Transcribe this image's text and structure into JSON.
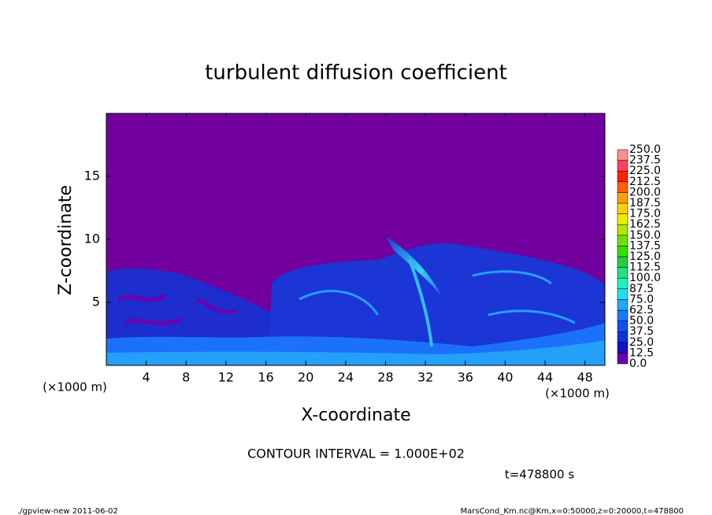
{
  "chart_data": {
    "type": "heatmap",
    "title": "turbulent diffusion coefficient",
    "xlabel": "X-coordinate",
    "ylabel": "Z-coordinate",
    "xunit": "(×1000 m)",
    "yunit": "(×1000 m)",
    "xlim": [
      0,
      50
    ],
    "ylim": [
      0,
      20
    ],
    "xticks": [
      4,
      8,
      12,
      16,
      20,
      24,
      28,
      32,
      36,
      40,
      44,
      48
    ],
    "yticks": [
      5,
      10,
      15
    ],
    "background_color": "#71009f",
    "colorbar": {
      "levels": [
        {
          "value": 0,
          "label": "0.0"
        },
        {
          "value": 12.5,
          "label": "12.5"
        },
        {
          "value": 25,
          "label": "25.0"
        },
        {
          "value": 37.5,
          "label": "37.5"
        },
        {
          "value": 50,
          "label": "50.0"
        },
        {
          "value": 62.5,
          "label": "62.5"
        },
        {
          "value": 75,
          "label": "75.0"
        },
        {
          "value": 87.5,
          "label": "87.5"
        },
        {
          "value": 100,
          "label": "100.0"
        },
        {
          "value": 112.5,
          "label": "112.5"
        },
        {
          "value": 125,
          "label": "125.0"
        },
        {
          "value": 137.5,
          "label": "137.5"
        },
        {
          "value": 150,
          "label": "150.0"
        },
        {
          "value": 162.5,
          "label": "162.5"
        },
        {
          "value": 175,
          "label": "175.0"
        },
        {
          "value": 187.5,
          "label": "187.5"
        },
        {
          "value": 200,
          "label": "200.0"
        },
        {
          "value": 212.5,
          "label": "212.5"
        },
        {
          "value": 225,
          "label": "225.0"
        },
        {
          "value": 237.5,
          "label": "237.5"
        },
        {
          "value": 250,
          "label": "250.0"
        }
      ],
      "colors": [
        "#6c00b0",
        "#1a10c0",
        "#1030e0",
        "#1050f0",
        "#1878ff",
        "#20a8ff",
        "#20e0f0",
        "#20f0c0",
        "#20e080",
        "#20d040",
        "#30e000",
        "#70e000",
        "#b0e800",
        "#e8f000",
        "#ffd000",
        "#ffa000",
        "#ff6000",
        "#ff2000",
        "#ff4060",
        "#ff9090"
      ]
    },
    "annotations": [
      "CONTOUR INTERVAL = 1.000E+02",
      "t=478800 s"
    ],
    "footer_left": "./gpview-new  2011-06-02",
    "footer_right": "MarsCond_Km.nc@Km,x=0:50000,z=0:20000,t=478800"
  }
}
